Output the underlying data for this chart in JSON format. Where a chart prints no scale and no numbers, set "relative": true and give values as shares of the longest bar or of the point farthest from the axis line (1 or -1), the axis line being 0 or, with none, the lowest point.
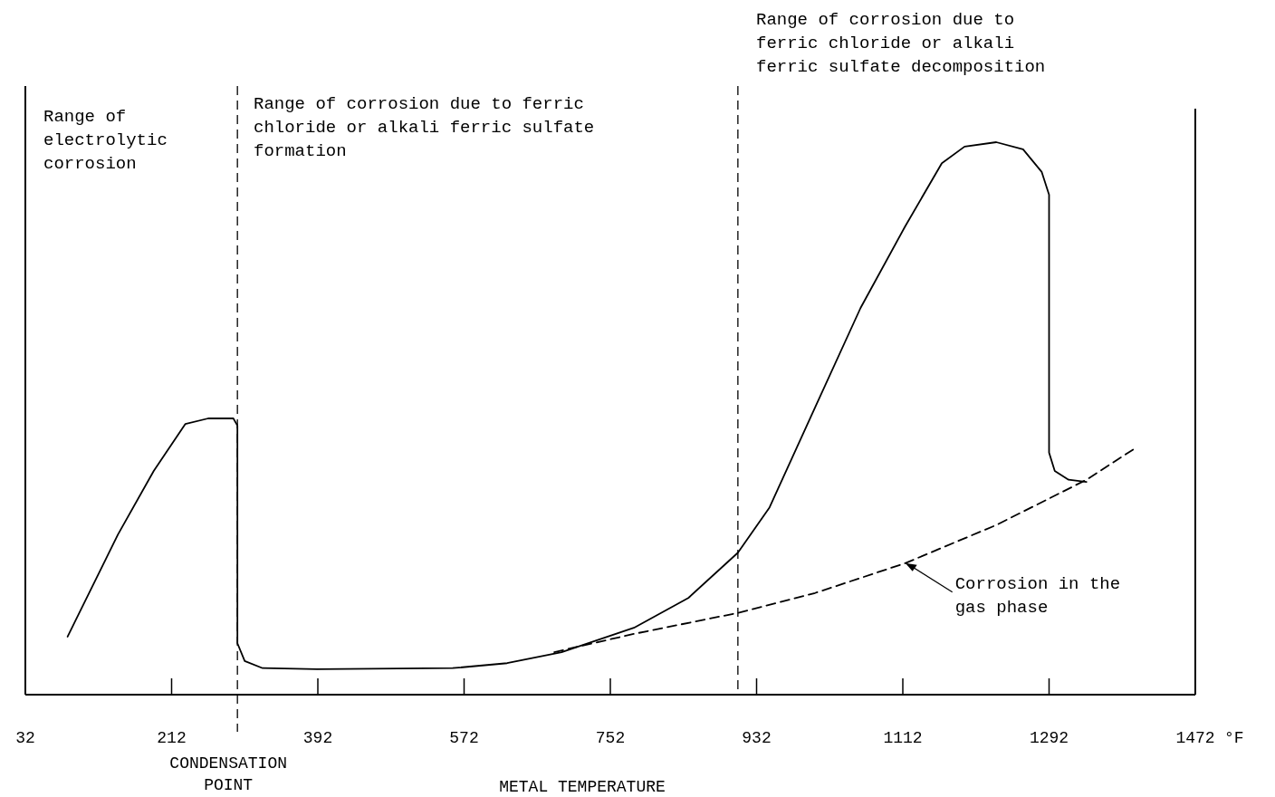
{
  "chart_data": {
    "type": "line",
    "relative": true,
    "xlabel": "METAL TEMPERATURE",
    "xlim": [
      32,
      1472
    ],
    "xticks": [
      32,
      212,
      392,
      572,
      752,
      932,
      1112,
      1292,
      1472
    ],
    "series": [
      {
        "color": "#000000",
        "line_style": "solid",
        "x": [
          84,
          146,
          190,
          229,
          257,
          288,
          293,
          293,
          302,
          324,
          391,
          558,
          625,
          692,
          781,
          848,
          909,
          948,
          1004,
          1060,
          1115,
          1160,
          1188,
          1227,
          1260,
          1283,
          1292,
          1292,
          1299,
          1316,
          1338
        ],
        "values": [
          0.105,
          0.29,
          0.405,
          0.49,
          0.5,
          0.5,
          0.487,
          0.093,
          0.061,
          0.048,
          0.046,
          0.048,
          0.057,
          0.077,
          0.121,
          0.175,
          0.257,
          0.339,
          0.52,
          0.7,
          0.848,
          0.962,
          0.992,
          1,
          0.987,
          0.946,
          0.905,
          0.438,
          0.405,
          0.389,
          0.385
        ]
      },
      {
        "color": "#000000",
        "line_style": "dashed",
        "x": [
          683,
          781,
          909,
          1004,
          1115,
          1227,
          1338,
          1400
        ],
        "values": [
          0.077,
          0.11,
          0.148,
          0.184,
          0.238,
          0.307,
          0.389,
          0.448
        ]
      }
    ],
    "ref_lines": [
      {
        "axis": "x",
        "value": 293,
        "label": "CONDENSATION POINT",
        "line_style": "dashed"
      },
      {
        "axis": "x",
        "value": 909,
        "line_style": "dashed"
      }
    ],
    "annotations": [
      "Range of electrolytic corrosion",
      "Range of corrosion due to ferric chloride or alkali ferric sulfate formation",
      "Range of corrosion due to ferric chloride or alkali ferric sulfate decomposition",
      {
        "text": "Corrosion in the gas phase",
        "x": 1115,
        "y": 0.238
      },
      "°F"
    ]
  }
}
